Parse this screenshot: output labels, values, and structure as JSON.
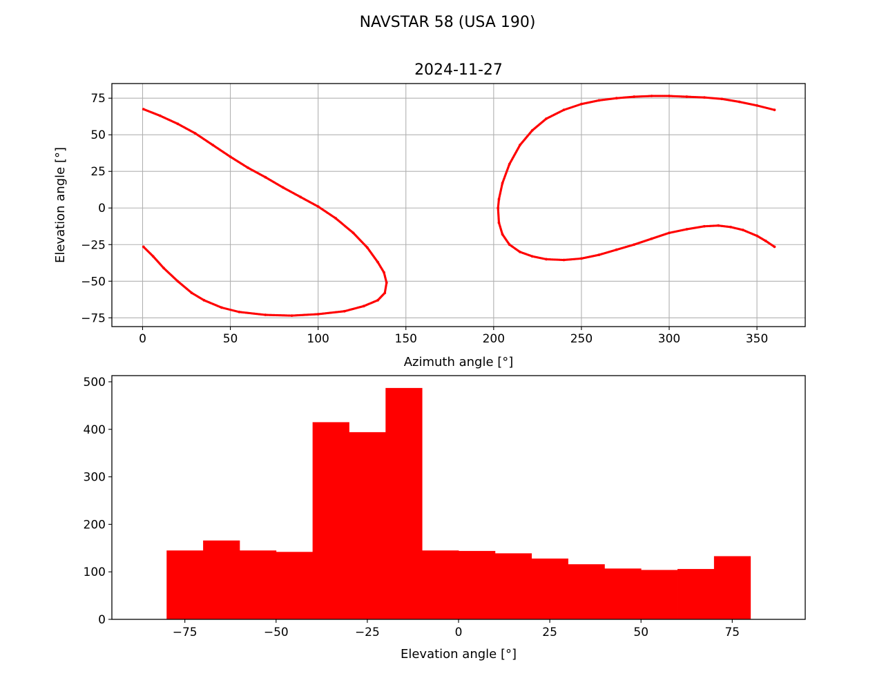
{
  "figure": {
    "suptitle": "NAVSTAR 58 (USA 190)"
  },
  "chart_data": [
    {
      "type": "scatter",
      "title": "2024-11-27",
      "xlabel": "Azimuth angle [°]",
      "ylabel": "Elevation angle [°]",
      "xlim": [
        -17.5,
        377.5
      ],
      "ylim": [
        -81,
        85
      ],
      "xticks": [
        0,
        50,
        100,
        150,
        200,
        250,
        300,
        350
      ],
      "yticks": [
        -75,
        -50,
        -25,
        0,
        25,
        50,
        75
      ],
      "grid": true,
      "color": "#ff0000",
      "series": [
        {
          "x": [
            0.5,
            10,
            20,
            30,
            40,
            50,
            60,
            70,
            80,
            90,
            100,
            110,
            120,
            128,
            134,
            137.5,
            139,
            138,
            134,
            126,
            115,
            100,
            85,
            70,
            55,
            45,
            35,
            28,
            20,
            12,
            6,
            0.5
          ],
          "y": [
            67.5,
            63,
            57.5,
            51,
            43,
            35,
            27.5,
            21,
            14,
            7.5,
            1,
            -7,
            -17,
            -27,
            -37,
            -44,
            -51,
            -58,
            -63,
            -67,
            -70.5,
            -72.5,
            -73.5,
            -73,
            -71,
            -68,
            -63,
            -58,
            -50,
            -41,
            -33,
            -26.5
          ]
        },
        {
          "x": [
            360,
            350,
            340,
            330,
            320,
            310,
            300,
            290,
            280,
            270,
            260,
            250,
            240,
            230,
            222,
            215,
            209,
            205,
            203,
            202.5,
            203,
            205,
            209,
            215,
            222,
            230,
            240,
            250,
            260,
            270,
            280,
            290,
            300,
            310,
            320,
            328,
            335,
            342,
            350,
            355,
            360
          ],
          "y": [
            67,
            70,
            72.5,
            74.5,
            75.5,
            76,
            76.5,
            76.5,
            76,
            75,
            73.5,
            71,
            67,
            61,
            53,
            43,
            30,
            17,
            6,
            0,
            -10,
            -18,
            -25,
            -30,
            -33,
            -35,
            -35.5,
            -34.5,
            -32,
            -28.5,
            -25,
            -21,
            -17,
            -14.5,
            -12.5,
            -12,
            -13,
            -15,
            -19,
            -22.5,
            -26.5
          ]
        }
      ]
    },
    {
      "type": "bar",
      "xlabel": "Elevation angle [°]",
      "ylabel": "",
      "xlim": [
        -95,
        95
      ],
      "ylim": [
        0,
        513
      ],
      "xticks": [
        -75,
        -50,
        -25,
        0,
        25,
        50,
        75
      ],
      "xtick_labels": [
        "−75",
        "−50",
        "−25",
        "0",
        "25",
        "50",
        "75"
      ],
      "yticks": [
        0,
        100,
        200,
        300,
        400,
        500
      ],
      "grid": false,
      "color": "#ff0000",
      "bin_edges": [
        -80,
        -70,
        -60,
        -50,
        -40,
        -30,
        -20,
        -10,
        0,
        10,
        20,
        30,
        40,
        50,
        60,
        70,
        80
      ],
      "values": [
        145,
        166,
        145,
        142,
        415,
        394,
        487,
        145,
        144,
        139,
        128,
        116,
        107,
        104,
        106,
        133
      ]
    }
  ]
}
